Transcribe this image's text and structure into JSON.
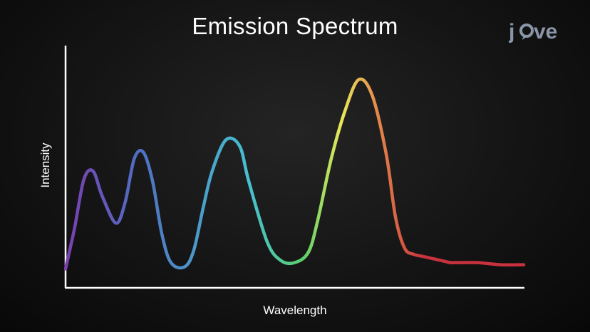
{
  "chart_data": {
    "type": "line",
    "title": "Emission Spectrum",
    "xlabel": "Wavelength",
    "ylabel": "Intensity",
    "grid": false,
    "legend": "none",
    "x_ticks": "none",
    "y_ticks": "none",
    "xlim": [
      0,
      100
    ],
    "ylim": [
      0,
      100
    ],
    "line_colors": [
      "#7a3fb0",
      "#4f6fc2",
      "#47c0d0",
      "#5cd06a",
      "#e8e85a",
      "#e5884a",
      "#c8323e"
    ],
    "series": [
      {
        "x": [
          0,
          2,
          4,
          6,
          8,
          11,
          13,
          15,
          17,
          19,
          21,
          23,
          26,
          28,
          30,
          32,
          35,
          38,
          40,
          44,
          47,
          50,
          53,
          55,
          58,
          61,
          64,
          67,
          70,
          72,
          74,
          76,
          78,
          80,
          82,
          84,
          85,
          87,
          90,
          95,
          100
        ],
        "values": [
          5,
          25,
          48,
          52,
          40,
          27,
          37,
          58,
          61,
          47,
          22,
          8,
          6,
          14,
          34,
          52,
          67,
          64,
          47,
          18,
          9,
          8,
          13,
          28,
          58,
          81,
          96,
          88,
          60,
          30,
          15,
          12,
          11,
          10,
          9,
          8,
          8,
          8,
          8,
          7,
          7
        ]
      }
    ]
  },
  "logo": {
    "text": "jove",
    "color": "#8a96a8"
  }
}
